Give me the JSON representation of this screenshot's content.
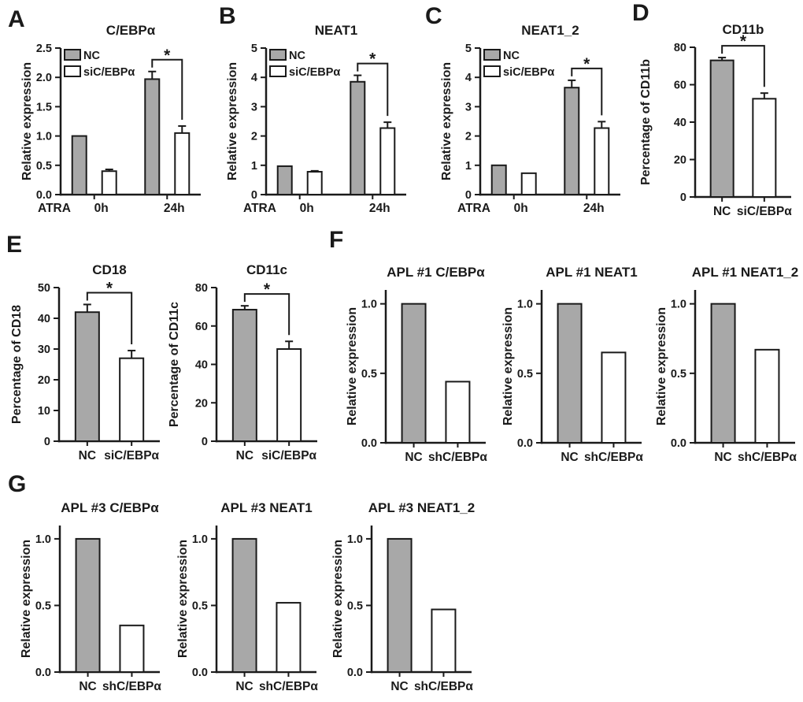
{
  "figure": {
    "panel_letters": {
      "a": "A",
      "b": "B",
      "c": "C",
      "d": "D",
      "e": "E",
      "f": "F",
      "g": "G"
    },
    "colors": {
      "bar_gray": "#A8A8A8",
      "bar_white": "#FFFFFF",
      "ink": "#1A1A1A"
    }
  },
  "chart_data": [
    {
      "id": "A",
      "type": "bar",
      "title": "C/EBPα",
      "ylabel": "Relative expression",
      "ylim": [
        0,
        2.5
      ],
      "yticks": [
        "0.0",
        "0.5",
        "1.0",
        "1.5",
        "2.0",
        "2.5"
      ],
      "categories": [
        "0h",
        "24h"
      ],
      "x_prefix": "ATRA",
      "legend": true,
      "series": [
        {
          "name": "NC",
          "fill": "gray",
          "values": [
            1.0,
            1.97
          ],
          "errors": [
            0,
            0.13
          ]
        },
        {
          "name": "siC/EBPα",
          "fill": "white",
          "values": [
            0.4,
            1.05
          ],
          "errors": [
            0.03,
            0.12
          ]
        }
      ],
      "significance": {
        "label": "*",
        "category": 1
      }
    },
    {
      "id": "B",
      "type": "bar",
      "title": "NEAT1",
      "ylabel": "Relative expression",
      "ylim": [
        0,
        5
      ],
      "yticks": [
        "0",
        "1",
        "2",
        "3",
        "4",
        "5"
      ],
      "categories": [
        "0h",
        "24h"
      ],
      "x_prefix": "ATRA",
      "legend": true,
      "series": [
        {
          "name": "NC",
          "fill": "gray",
          "values": [
            0.97,
            3.85
          ],
          "errors": [
            0,
            0.22
          ]
        },
        {
          "name": "siC/EBPα",
          "fill": "white",
          "values": [
            0.78,
            2.27
          ],
          "errors": [
            0.03,
            0.2
          ]
        }
      ],
      "significance": {
        "label": "*",
        "category": 1
      }
    },
    {
      "id": "C",
      "type": "bar",
      "title": "NEAT1_2",
      "ylabel": "Relative expression",
      "ylim": [
        0,
        5
      ],
      "yticks": [
        "0",
        "1",
        "2",
        "3",
        "4",
        "5"
      ],
      "categories": [
        "0h",
        "24h"
      ],
      "x_prefix": "ATRA",
      "legend": true,
      "series": [
        {
          "name": "NC",
          "fill": "gray",
          "values": [
            1.0,
            3.65
          ],
          "errors": [
            0,
            0.25
          ]
        },
        {
          "name": "siC/EBPα",
          "fill": "white",
          "values": [
            0.73,
            2.27
          ],
          "errors": [
            0,
            0.22
          ]
        }
      ],
      "significance": {
        "label": "*",
        "category": 1
      }
    },
    {
      "id": "D",
      "type": "bar",
      "title": "CD11b",
      "ylabel": "Percentage of CD11b",
      "ylim": [
        0,
        80
      ],
      "yticks": [
        "0",
        "20",
        "40",
        "60",
        "80"
      ],
      "categories": [
        "NC",
        "siC/EBPα"
      ],
      "values": [
        73,
        52.5
      ],
      "errors": [
        1.5,
        3
      ],
      "fills": [
        "gray",
        "white"
      ],
      "significance": {
        "label": "*"
      }
    },
    {
      "id": "E1",
      "type": "bar",
      "title": "CD18",
      "ylabel": "Percentage of CD18",
      "ylim": [
        0,
        50
      ],
      "yticks": [
        "0",
        "10",
        "20",
        "30",
        "40",
        "50"
      ],
      "categories": [
        "NC",
        "siC/EBPα"
      ],
      "values": [
        42,
        27
      ],
      "errors": [
        2.5,
        2.5
      ],
      "fills": [
        "gray",
        "white"
      ],
      "significance": {
        "label": "*"
      }
    },
    {
      "id": "E2",
      "type": "bar",
      "title": "CD11c",
      "ylabel": "Percentage of CD11c",
      "ylim": [
        0,
        80
      ],
      "yticks": [
        "0",
        "20",
        "40",
        "60",
        "80"
      ],
      "categories": [
        "NC",
        "siC/EBPα"
      ],
      "values": [
        68.5,
        48
      ],
      "errors": [
        2,
        4
      ],
      "fills": [
        "gray",
        "white"
      ],
      "significance": {
        "label": "*"
      }
    },
    {
      "id": "F1",
      "type": "bar",
      "title": "APL #1 C/EBPα",
      "ylabel": "Relative expression",
      "ylim": [
        0,
        1.1
      ],
      "yticks": [
        "0.0",
        "0.5",
        "1.0"
      ],
      "categories": [
        "NC",
        "shC/EBPα"
      ],
      "values": [
        1.0,
        0.44
      ],
      "errors": [
        0,
        0
      ],
      "fills": [
        "gray",
        "white"
      ]
    },
    {
      "id": "F2",
      "type": "bar",
      "title": "APL #1 NEAT1",
      "ylabel": "Relative expression",
      "ylim": [
        0,
        1.1
      ],
      "yticks": [
        "0.0",
        "0.5",
        "1.0"
      ],
      "categories": [
        "NC",
        "shC/EBPα"
      ],
      "values": [
        1.0,
        0.65
      ],
      "errors": [
        0,
        0
      ],
      "fills": [
        "gray",
        "white"
      ]
    },
    {
      "id": "F3",
      "type": "bar",
      "title": "APL #1 NEAT1_2",
      "ylabel": "Relative expression",
      "ylim": [
        0,
        1.1
      ],
      "yticks": [
        "0.0",
        "0.5",
        "1.0"
      ],
      "categories": [
        "NC",
        "shC/EBPα"
      ],
      "values": [
        1.0,
        0.67
      ],
      "errors": [
        0,
        0
      ],
      "fills": [
        "gray",
        "white"
      ]
    },
    {
      "id": "G1",
      "type": "bar",
      "title": "APL #3 C/EBPα",
      "ylabel": "Relative expression",
      "ylim": [
        0,
        1.1
      ],
      "yticks": [
        "0.0",
        "0.5",
        "1.0"
      ],
      "categories": [
        "NC",
        "shC/EBPα"
      ],
      "values": [
        1.0,
        0.35
      ],
      "errors": [
        0,
        0
      ],
      "fills": [
        "gray",
        "white"
      ]
    },
    {
      "id": "G2",
      "type": "bar",
      "title": "APL #3 NEAT1",
      "ylabel": "Relative expression",
      "ylim": [
        0,
        1.1
      ],
      "yticks": [
        "0.0",
        "0.5",
        "1.0"
      ],
      "categories": [
        "NC",
        "shC/EBPα"
      ],
      "values": [
        1.0,
        0.52
      ],
      "errors": [
        0,
        0
      ],
      "fills": [
        "gray",
        "white"
      ]
    },
    {
      "id": "G3",
      "type": "bar",
      "title": "APL #3 NEAT1_2",
      "ylabel": "Relative expression",
      "ylim": [
        0,
        1.1
      ],
      "yticks": [
        "0.0",
        "0.5",
        "1.0"
      ],
      "categories": [
        "NC",
        "shC/EBPα"
      ],
      "values": [
        1.0,
        0.47
      ],
      "errors": [
        0,
        0
      ],
      "fills": [
        "gray",
        "white"
      ]
    }
  ]
}
